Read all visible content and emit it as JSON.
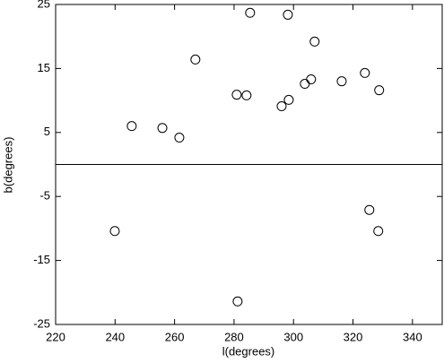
{
  "chart_data": {
    "type": "scatter",
    "x_label": "l(degrees)",
    "y_label": "b(degrees)",
    "series": [
      {
        "name": null,
        "color": "#000000",
        "x": [
          239.9,
          245.6,
          255.9,
          261.6,
          267.0,
          280.9,
          284.2,
          285.4,
          298.1,
          296.0,
          298.4,
          307.1,
          303.8,
          305.9,
          316.2,
          324.0,
          328.8,
          325.5,
          328.5,
          281.2
        ],
        "values": [
          -10.4,
          6.0,
          5.7,
          4.2,
          16.4,
          10.9,
          10.8,
          23.7,
          23.4,
          9.1,
          10.1,
          19.2,
          12.6,
          13.3,
          13.0,
          14.3,
          11.6,
          -7.1,
          -10.4,
          -21.4
        ]
      }
    ],
    "xlim": [
      220,
      350
    ],
    "xticks": [
      220,
      240,
      260,
      280,
      300,
      320,
      340
    ],
    "ylim": [
      -25,
      25
    ],
    "yticks": [
      -25,
      -15,
      -5,
      5,
      15,
      25
    ],
    "hline": 0
  }
}
